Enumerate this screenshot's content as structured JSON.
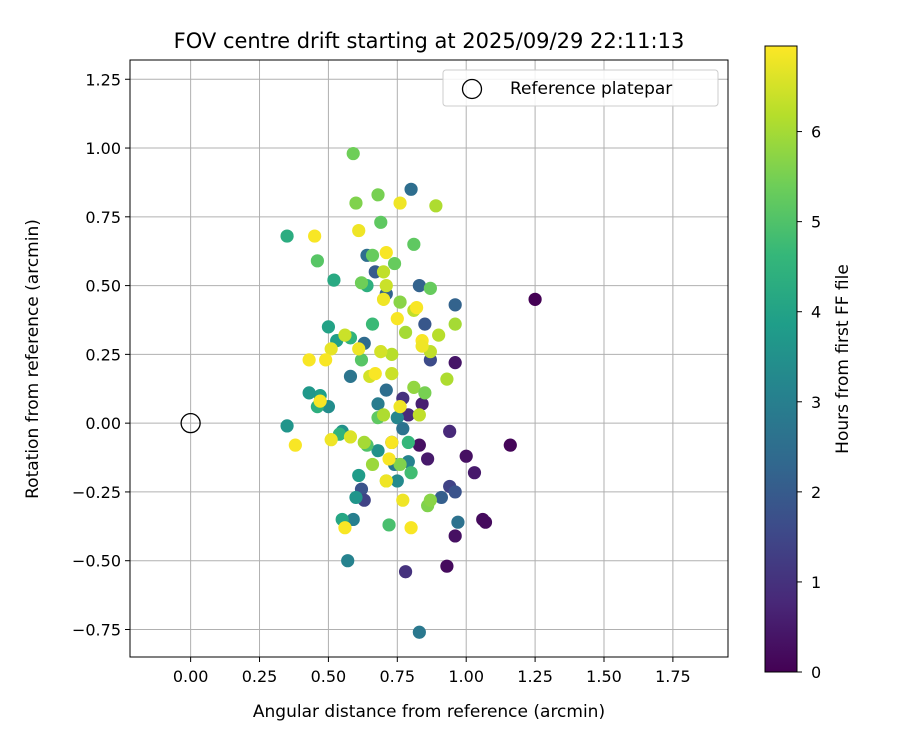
{
  "chart_data": {
    "type": "scatter",
    "title": "FOV centre drift starting at 2025/09/29 22:11:13",
    "xlabel": "Angular distance from reference (arcmin)",
    "ylabel": "Rotation from reference (arcmin)",
    "xlim": [
      -0.22,
      1.95
    ],
    "ylim": [
      -0.85,
      1.32
    ],
    "xticks": [
      0.0,
      0.25,
      0.5,
      0.75,
      1.0,
      1.25,
      1.5,
      1.75
    ],
    "xtick_labels": [
      "0.00",
      "0.25",
      "0.50",
      "0.75",
      "1.00",
      "1.25",
      "1.50",
      "1.75"
    ],
    "yticks": [
      -0.75,
      -0.5,
      -0.25,
      0.0,
      0.25,
      0.5,
      0.75,
      1.0,
      1.25
    ],
    "ytick_labels": [
      "−0.75",
      "−0.50",
      "−0.25",
      "0.00",
      "0.25",
      "0.50",
      "0.75",
      "1.00",
      "1.25"
    ],
    "grid": true,
    "legend": {
      "placement": "top-right",
      "label": "Reference platepar"
    },
    "reference_point": {
      "x": 0.0,
      "y": 0.0
    },
    "colorbar": {
      "label": "Hours from first FF file",
      "range": [
        0,
        6.95
      ],
      "ticks": [
        0,
        1,
        2,
        3,
        4,
        5,
        6
      ],
      "tick_labels": [
        "0",
        "1",
        "2",
        "3",
        "4",
        "5",
        "6"
      ],
      "colormap": [
        "#440154",
        "#482878",
        "#3e4989",
        "#31688e",
        "#26828e",
        "#1f9e89",
        "#35b779",
        "#6ece58",
        "#b5de2b",
        "#fde725"
      ]
    },
    "series": [
      {
        "name": "FOV centre",
        "points": [
          [
            1.25,
            0.45,
            0.0
          ],
          [
            1.16,
            -0.08,
            0.1
          ],
          [
            1.06,
            -0.35,
            0.2
          ],
          [
            1.07,
            -0.36,
            0.2
          ],
          [
            1.0,
            -0.12,
            0.3
          ],
          [
            1.03,
            -0.18,
            0.5
          ],
          [
            0.93,
            -0.52,
            0.2
          ],
          [
            0.96,
            -0.41,
            0.3
          ],
          [
            0.96,
            0.22,
            0.4
          ],
          [
            0.94,
            -0.03,
            0.8
          ],
          [
            0.83,
            -0.08,
            0.3
          ],
          [
            0.86,
            -0.13,
            0.5
          ],
          [
            0.78,
            -0.54,
            1.0
          ],
          [
            0.84,
            0.07,
            0.6
          ],
          [
            0.79,
            0.03,
            0.8
          ],
          [
            0.77,
            0.09,
            1.0
          ],
          [
            0.94,
            -0.23,
            1.4
          ],
          [
            0.96,
            -0.25,
            1.8
          ],
          [
            0.91,
            -0.27,
            2.1
          ],
          [
            0.97,
            -0.36,
            2.6
          ],
          [
            0.96,
            0.43,
            2.2
          ],
          [
            0.87,
            0.23,
            1.6
          ],
          [
            0.85,
            0.36,
            1.9
          ],
          [
            0.83,
            0.5,
            2.2
          ],
          [
            0.8,
            0.85,
            2.5
          ],
          [
            0.83,
            -0.76,
            2.8
          ],
          [
            0.64,
            0.61,
            2.5
          ],
          [
            0.67,
            0.55,
            2.0
          ],
          [
            0.71,
            0.47,
            2.2
          ],
          [
            0.63,
            0.29,
            2.4
          ],
          [
            0.58,
            0.17,
            2.7
          ],
          [
            0.62,
            -0.24,
            1.8
          ],
          [
            0.63,
            -0.28,
            1.4
          ],
          [
            0.68,
            0.07,
            2.9
          ],
          [
            0.75,
            0.02,
            3.2
          ],
          [
            0.73,
            -0.07,
            2.1
          ],
          [
            0.77,
            -0.02,
            2.6
          ],
          [
            0.74,
            -0.15,
            2.8
          ],
          [
            0.79,
            -0.14,
            3.1
          ],
          [
            0.75,
            -0.21,
            3.3
          ],
          [
            0.68,
            -0.1,
            3.5
          ],
          [
            0.71,
            0.12,
            2.5
          ],
          [
            0.57,
            -0.5,
            3.1
          ],
          [
            0.59,
            -0.35,
            3.0
          ],
          [
            0.61,
            -0.19,
            3.8
          ],
          [
            0.6,
            -0.27,
            3.6
          ],
          [
            0.55,
            -0.35,
            4.1
          ],
          [
            0.55,
            -0.03,
            3.5
          ],
          [
            0.5,
            0.06,
            3.4
          ],
          [
            0.47,
            0.1,
            3.9
          ],
          [
            0.43,
            0.11,
            3.7
          ],
          [
            0.35,
            -0.01,
            3.6
          ],
          [
            0.35,
            0.68,
            4.3
          ],
          [
            0.52,
            0.52,
            4.2
          ],
          [
            0.5,
            0.35,
            4.0
          ],
          [
            0.53,
            0.3,
            3.9
          ],
          [
            0.46,
            0.06,
            4.4
          ],
          [
            0.54,
            -0.04,
            4.5
          ],
          [
            0.58,
            0.31,
            4.5
          ],
          [
            0.64,
            0.5,
            4.4
          ],
          [
            0.72,
            -0.37,
            4.9
          ],
          [
            0.79,
            -0.07,
            4.6
          ],
          [
            0.8,
            -0.18,
            4.8
          ],
          [
            0.66,
            0.36,
            4.7
          ],
          [
            0.68,
            0.02,
            5.2
          ],
          [
            0.64,
            -0.08,
            5.0
          ],
          [
            0.46,
            0.59,
            5.1
          ],
          [
            0.59,
            0.98,
            5.4
          ],
          [
            0.6,
            0.8,
            5.6
          ],
          [
            0.68,
            0.83,
            5.5
          ],
          [
            0.69,
            0.73,
            5.2
          ],
          [
            0.81,
            0.65,
            5.2
          ],
          [
            0.87,
            0.49,
            5.3
          ],
          [
            0.62,
            0.51,
            5.4
          ],
          [
            0.66,
            0.61,
            5.3
          ],
          [
            0.74,
            0.58,
            5.3
          ],
          [
            0.62,
            0.23,
            5.1
          ],
          [
            0.76,
            0.44,
            5.7
          ],
          [
            0.81,
            0.13,
            5.8
          ],
          [
            0.85,
            0.11,
            5.5
          ],
          [
            0.86,
            -0.3,
            5.6
          ],
          [
            0.87,
            -0.28,
            5.7
          ],
          [
            0.76,
            -0.15,
            5.6
          ],
          [
            0.71,
            -0.21,
            5.9
          ],
          [
            0.66,
            -0.15,
            5.9
          ],
          [
            0.63,
            -0.07,
            6.0
          ],
          [
            0.7,
            0.03,
            6.1
          ],
          [
            0.78,
            0.33,
            6.0
          ],
          [
            0.73,
            0.25,
            6.2
          ],
          [
            0.81,
            0.41,
            6.3
          ],
          [
            0.89,
            0.79,
            6.1
          ],
          [
            0.96,
            0.36,
            6.0
          ],
          [
            0.9,
            0.32,
            6.2
          ],
          [
            0.93,
            0.16,
            6.1
          ],
          [
            0.87,
            0.26,
            6.3
          ],
          [
            0.83,
            0.03,
            6.3
          ],
          [
            0.73,
            0.18,
            6.4
          ],
          [
            0.7,
            0.55,
            6.3
          ],
          [
            0.71,
            0.5,
            6.4
          ],
          [
            0.69,
            0.26,
            6.5
          ],
          [
            0.65,
            0.17,
            6.5
          ],
          [
            0.56,
            0.32,
            6.4
          ],
          [
            0.58,
            -0.05,
            6.6
          ],
          [
            0.51,
            0.27,
            6.7
          ],
          [
            0.51,
            -0.06,
            6.8
          ],
          [
            0.45,
            0.68,
            6.9
          ],
          [
            0.61,
            0.7,
            6.8
          ],
          [
            0.76,
            0.8,
            6.8
          ],
          [
            0.71,
            0.62,
            6.9
          ],
          [
            0.75,
            0.38,
            6.9
          ],
          [
            0.82,
            0.42,
            6.9
          ],
          [
            0.84,
            0.3,
            6.9
          ],
          [
            0.84,
            0.28,
            6.8
          ],
          [
            0.73,
            -0.07,
            6.9
          ],
          [
            0.72,
            -0.13,
            6.9
          ],
          [
            0.77,
            -0.28,
            6.8
          ],
          [
            0.8,
            -0.38,
            6.9
          ],
          [
            0.56,
            -0.38,
            6.9
          ],
          [
            0.43,
            0.23,
            6.9
          ],
          [
            0.49,
            0.23,
            6.9
          ],
          [
            0.38,
            -0.08,
            6.9
          ],
          [
            0.47,
            0.08,
            6.9
          ],
          [
            0.61,
            0.27,
            6.8
          ],
          [
            0.67,
            0.18,
            6.9
          ],
          [
            0.7,
            0.45,
            6.8
          ],
          [
            0.76,
            0.06,
            6.8
          ],
          [
            0.71,
            -0.21,
            6.8
          ]
        ]
      }
    ]
  }
}
